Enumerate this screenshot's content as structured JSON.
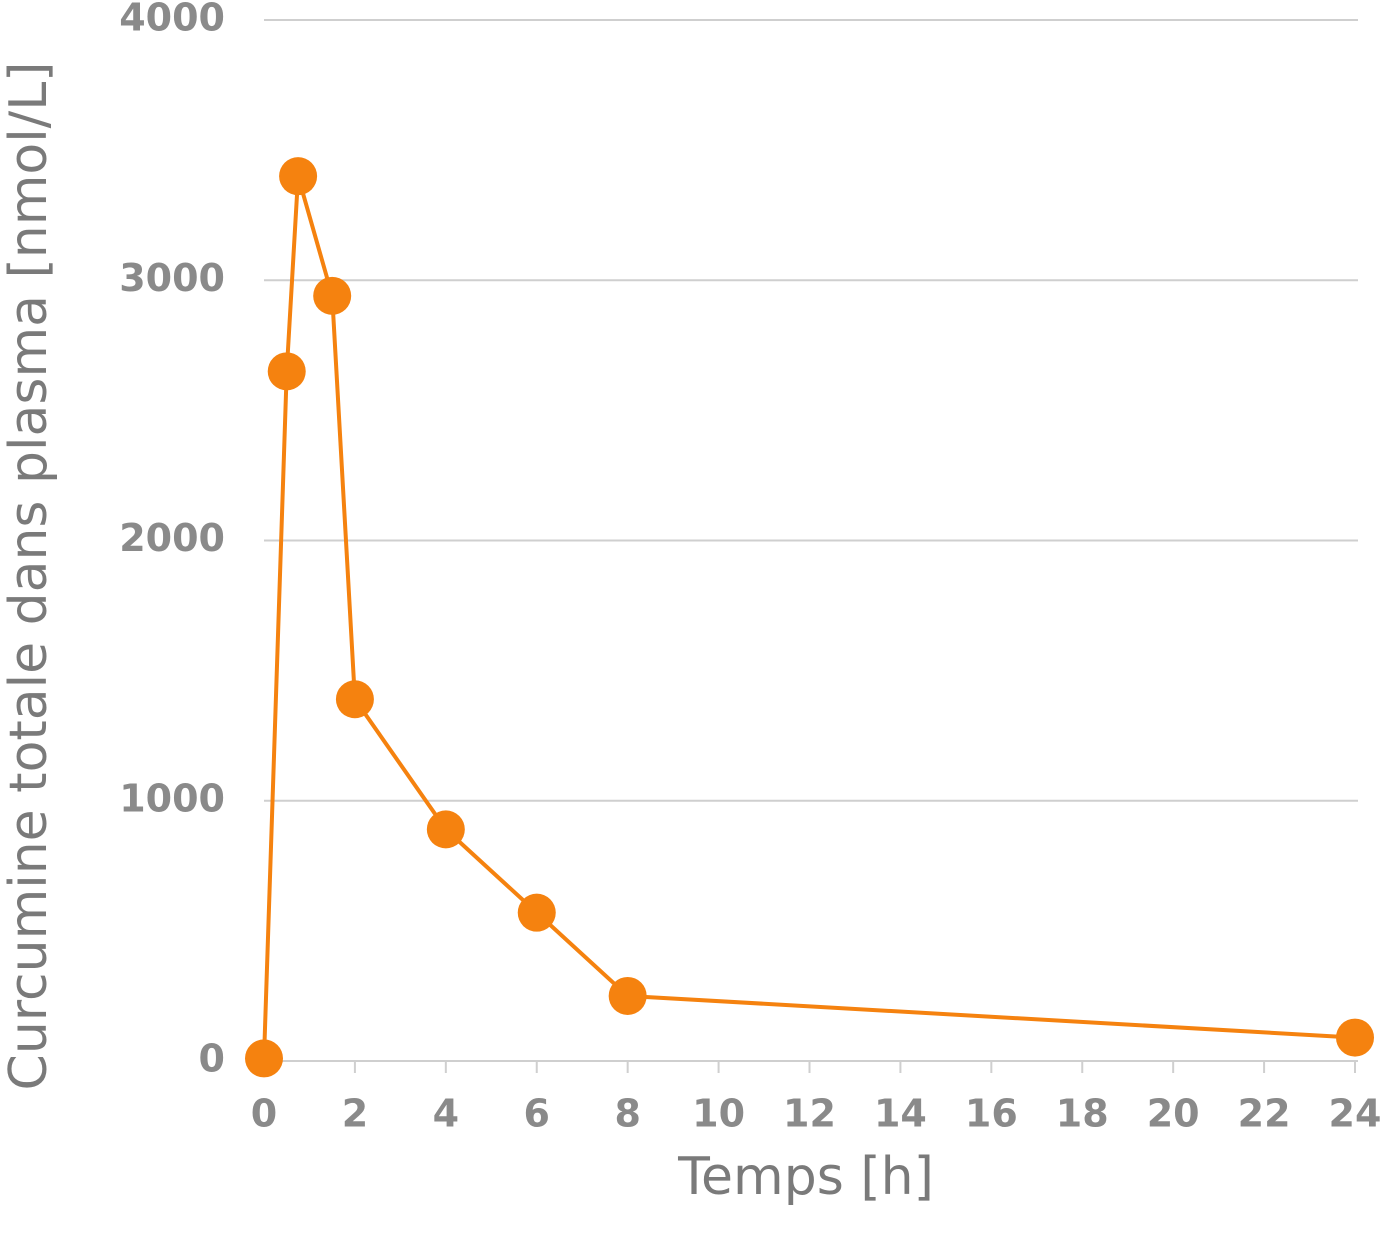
{
  "chart_data": {
    "type": "line",
    "xlabel": "Temps [h]",
    "ylabel": "Curcumine totale dans plasma [nmol/L]",
    "xlim": [
      0,
      24
    ],
    "ylim": [
      0,
      4000
    ],
    "xticks": [
      "0",
      "2",
      "4",
      "6",
      "8",
      "10",
      "12",
      "14",
      "16",
      "18",
      "20",
      "22",
      "24"
    ],
    "yticks": [
      "0",
      "1000",
      "2000",
      "3000",
      "4000"
    ],
    "grid": "horizontal",
    "legend": "none",
    "series": [
      {
        "color": "#f5820f",
        "x": [
          0,
          0.5,
          0.75,
          1.5,
          2,
          4,
          6,
          8,
          24
        ],
        "y": [
          10,
          2650,
          3400,
          2940,
          1390,
          890,
          570,
          250,
          90
        ]
      }
    ]
  }
}
